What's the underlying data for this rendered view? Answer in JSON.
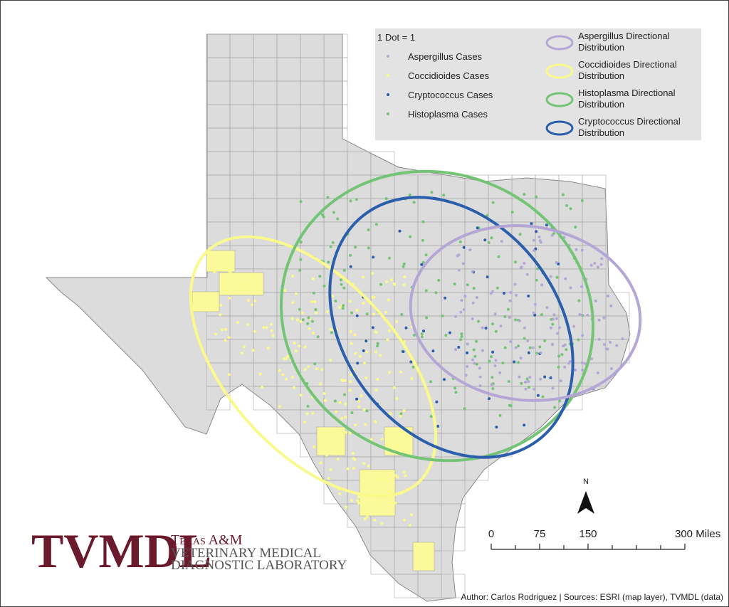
{
  "legend": {
    "title": "1 Dot = 1",
    "dots": [
      "Aspergillus Cases",
      "Coccidioides Cases",
      "Cryptococcus Cases",
      "Histoplasma Cases"
    ],
    "ellipses": [
      "Aspergillus Directional Distribution",
      "Coccidioides Directional Distribution",
      "Histoplasma Directional Distribution",
      "Cryptococcus Directional Distribution"
    ]
  },
  "north": "N",
  "scale_bar": {
    "labels": [
      "0",
      "75",
      "150",
      "300 Miles"
    ]
  },
  "logo": {
    "acronym": "TVMDL",
    "line1": "Texas A&M",
    "line2": "VETERINARY MEDICAL",
    "line3": "DIAGNOSTIC LABORATORY"
  },
  "credit": "Author: Carlos Rodriguez | Sources: ESRI (map layer), TVMDL (data)"
}
